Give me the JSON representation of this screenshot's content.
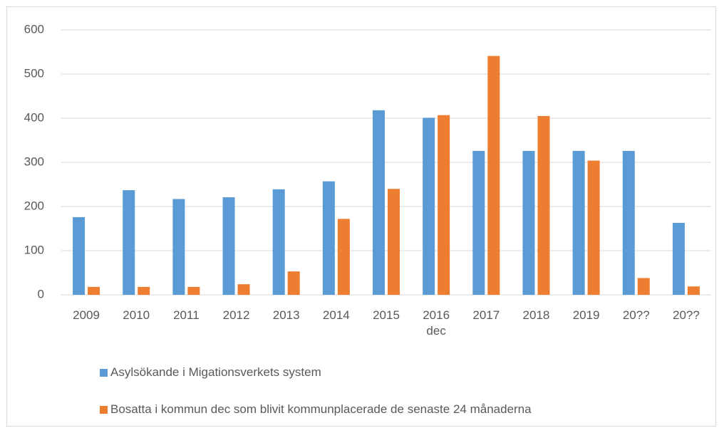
{
  "chart_data": {
    "type": "bar",
    "categories": [
      "2009",
      "2010",
      "2011",
      "2012",
      "2013",
      "2014",
      "2015",
      "2016\ndec",
      "2017",
      "2018",
      "2019",
      "20??",
      "20??"
    ],
    "series": [
      {
        "name": "Asylsökande i Migationsverkets system",
        "color": "#5b9bd5",
        "values": [
          176,
          237,
          217,
          221,
          239,
          257,
          418,
          401,
          326,
          326,
          326,
          326,
          163
        ]
      },
      {
        "name": "Bosatta i kommun dec som blivit kommunplacerade de senaste 24 månaderna",
        "color": "#ed7d31",
        "values": [
          18,
          18,
          18,
          24,
          53,
          172,
          240,
          407,
          541,
          405,
          304,
          38,
          19
        ]
      }
    ],
    "ylim": [
      0,
      600
    ],
    "yticks": [
      0,
      100,
      200,
      300,
      400,
      500,
      600
    ],
    "grid": true,
    "legend": "bottom"
  }
}
